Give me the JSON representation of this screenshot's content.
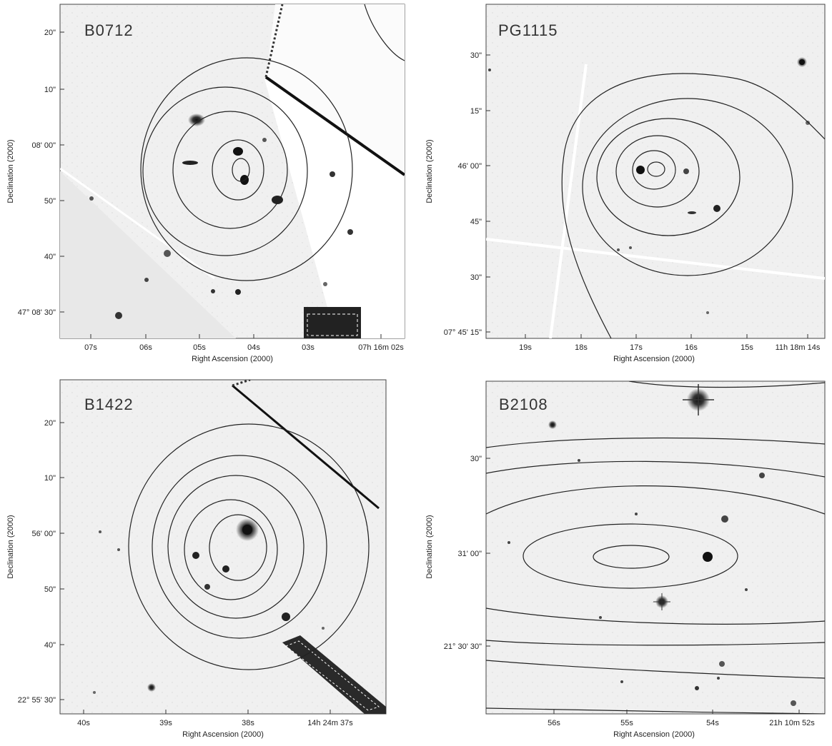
{
  "figure": {
    "panels": [
      {
        "name": "B0712",
        "xlabel": "Right Ascension (2000)",
        "ylabel": "Declination (2000)",
        "yticks": [
          "20\"",
          "10\"",
          "08' 00\"",
          "50\"",
          "40\"",
          "47° 08' 30\""
        ],
        "xticks": [
          "07s",
          "06s",
          "05s",
          "04s",
          "03s",
          "07h 16m 02s"
        ]
      },
      {
        "name": "PG1115",
        "xlabel": "Right Ascension (2000)",
        "ylabel": "Declination (2000)",
        "yticks": [
          "30\"",
          "15\"",
          "46' 00\"",
          "45\"",
          "30\"",
          "07° 45' 15\""
        ],
        "xticks": [
          "19s",
          "18s",
          "17s",
          "16s",
          "15s",
          "11h 18m 14s"
        ]
      },
      {
        "name": "B1422",
        "xlabel": "Right Ascension (2000)",
        "ylabel": "Declination (2000)",
        "yticks": [
          "20\"",
          "10\"",
          "56' 00\"",
          "50\"",
          "40\"",
          "22° 55' 30\""
        ],
        "xticks": [
          "40s",
          "39s",
          "38s",
          "14h 24m 37s"
        ]
      },
      {
        "name": "B2108",
        "xlabel": "Right Ascension (2000)",
        "ylabel": "Declination (2000)",
        "yticks": [
          "30\"",
          "31' 00\"",
          "21° 30' 30\""
        ],
        "xticks": [
          "56s",
          "55s",
          "54s",
          "21h 10m 52s"
        ]
      }
    ]
  }
}
